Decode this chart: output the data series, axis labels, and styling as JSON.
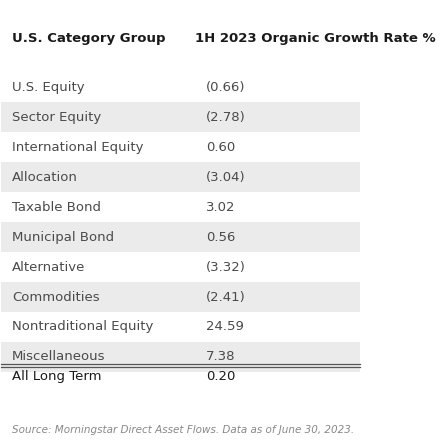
{
  "title_left": "U.S. Category Group",
  "title_right": "1H 2023 Organic Growth Rate %",
  "rows": [
    {
      "category": "U.S. Equity",
      "value": "(0.66)"
    },
    {
      "category": "Sector Equity",
      "value": "(2.78)"
    },
    {
      "category": "International Equity",
      "value": "0.60"
    },
    {
      "category": "Allocation",
      "value": "(3.04)"
    },
    {
      "category": "Taxable Bond",
      "value": "3.02"
    },
    {
      "category": "Municipal Bond",
      "value": "0.56"
    },
    {
      "category": "Alternative",
      "value": "(3.32)"
    },
    {
      "category": "Commodities",
      "value": "(2.41)"
    },
    {
      "category": "Nontraditional Equity",
      "value": "24.59"
    },
    {
      "category": "Miscellaneous",
      "value": "7.38"
    }
  ],
  "footer_row": {
    "category": "All Long Term",
    "value": "0.20"
  },
  "source_text": "Source: Morningstar Direct Asset Flows. Data as of June 30, 2023.",
  "bg_color_odd": "#ebebeb",
  "bg_color_even": "#ffffff",
  "text_color_category": "#4a4a4a",
  "text_color_value": "#4a4a4a",
  "title_color": "#1a1a1a",
  "source_color": "#888888",
  "title_fontsize": 9.5,
  "row_fontsize": 9.5,
  "source_fontsize": 7.5,
  "footer_text_color": "#1a1a1a"
}
